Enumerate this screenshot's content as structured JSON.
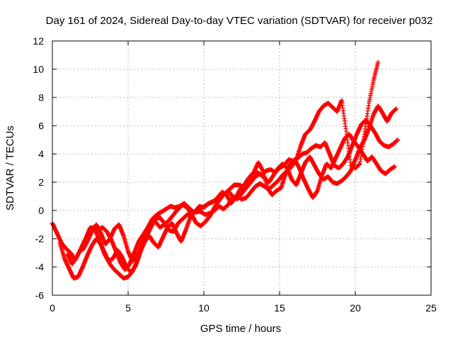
{
  "chart_data": {
    "type": "scatter",
    "title": "Day 161 of 2024, Sidereal Day-to-day VTEC variation (SDTVAR) for receiver p032",
    "xlabel": "GPS time / hours",
    "ylabel": "SDTVAR / TECUs",
    "xlim": [
      0,
      25
    ],
    "ylim": [
      -6,
      12
    ],
    "xticks": [
      "0",
      "5",
      "10",
      "15",
      "20",
      "25"
    ],
    "yticks": [
      "-6",
      "-4",
      "-2",
      "0",
      "2",
      "4",
      "6",
      "8",
      "10",
      "12"
    ],
    "grid": true,
    "marker": "plus",
    "color": "#ff0000",
    "series": [
      {
        "x": [
          0.0,
          0.3,
          0.6,
          0.9,
          1.2,
          1.5,
          1.8,
          2.1,
          2.4,
          2.7,
          3.0,
          3.3,
          3.6,
          3.9,
          4.2,
          4.5,
          4.8,
          5.1,
          5.4,
          5.7,
          6.0,
          6.3,
          6.6,
          6.9,
          7.2,
          7.5,
          7.8,
          8.1,
          8.4,
          8.7,
          9.0,
          9.3,
          9.6,
          9.9,
          10.2,
          10.5,
          10.8,
          11.1,
          11.4,
          11.7,
          12.0,
          12.3,
          12.6,
          12.9,
          13.2,
          13.5,
          13.8,
          14.1,
          14.4,
          14.7,
          15.0,
          15.3,
          15.6,
          15.9,
          16.2,
          16.5,
          16.8,
          17.1,
          17.4,
          17.7,
          18.0,
          18.3,
          18.6,
          18.9,
          19.2,
          19.5,
          19.8,
          20.1,
          20.4,
          20.7,
          21.0,
          21.3,
          21.6,
          21.9,
          22.2,
          22.5,
          22.8
        ],
        "y": [
          -0.9,
          -1.6,
          -2.3,
          -2.7,
          -3.0,
          -3.5,
          -2.9,
          -2.2,
          -1.6,
          -1.2,
          -1.4,
          -1.2,
          -1.5,
          -2.1,
          -2.9,
          -3.7,
          -4.2,
          -3.8,
          -3.0,
          -2.2,
          -1.7,
          -1.2,
          -0.6,
          -0.3,
          -0.1,
          0.1,
          0.3,
          0.2,
          0.3,
          0.5,
          0.2,
          -0.1,
          -0.1,
          0.2,
          0.4,
          0.6,
          0.7,
          1.0,
          1.2,
          1.5,
          1.8,
          1.8,
          1.7,
          2.2,
          2.6,
          2.7,
          2.5,
          2.8,
          2.9,
          2.7,
          3.0,
          3.2,
          3.6,
          3.5,
          3.7,
          4.0,
          4.1,
          4.4,
          4.6,
          4.5,
          4.8,
          4.0,
          3.2,
          3.0,
          3.3,
          3.8,
          4.6,
          5.4,
          6.1,
          6.4,
          6.0,
          5.5,
          4.9,
          4.6,
          4.5,
          4.7,
          5.0
        ]
      },
      {
        "x": [
          0.5,
          0.8,
          1.1,
          1.4,
          1.7,
          2.0,
          2.3,
          2.6,
          2.9,
          3.2,
          3.5,
          3.8,
          4.1,
          4.4,
          4.7,
          5.0,
          5.3,
          5.6,
          5.9,
          6.2,
          6.5,
          6.8,
          7.1,
          7.4,
          7.7,
          8.0,
          8.3,
          8.6,
          8.9,
          9.2,
          9.5,
          9.8,
          10.1,
          10.4,
          10.7,
          11.0,
          11.3,
          11.6,
          11.9,
          12.2,
          12.5,
          12.8,
          13.1,
          13.4,
          13.7,
          14.0,
          14.3,
          14.6,
          14.9,
          15.2,
          15.5,
          15.8,
          16.1,
          16.4,
          16.7,
          17.0,
          17.3,
          17.6,
          17.9,
          18.2,
          18.5,
          18.8,
          19.1,
          19.4,
          19.7,
          20.0,
          20.3,
          20.6,
          20.9,
          21.2,
          21.5
        ],
        "y": [
          -2.3,
          -3.4,
          -4.1,
          -4.8,
          -4.7,
          -4.0,
          -3.2,
          -2.5,
          -2.0,
          -2.4,
          -3.1,
          -3.8,
          -4.2,
          -4.5,
          -4.8,
          -4.7,
          -4.3,
          -3.6,
          -2.7,
          -1.9,
          -1.2,
          -0.6,
          -0.5,
          -0.9,
          -1.4,
          -1.5,
          -0.9,
          -0.6,
          -0.3,
          -0.2,
          0.0,
          -0.1,
          -0.3,
          -0.2,
          0.0,
          0.3,
          0.1,
          0.4,
          0.9,
          1.0,
          0.8,
          0.9,
          1.3,
          1.7,
          1.9,
          1.7,
          1.5,
          1.8,
          2.1,
          2.5,
          2.8,
          3.1,
          3.6,
          4.6,
          5.4,
          5.7,
          6.3,
          7.0,
          7.4,
          7.6,
          7.3,
          7.0,
          7.8,
          5.6,
          3.2,
          3.0,
          3.3,
          5.4,
          7.6,
          9.2,
          10.5
        ]
      },
      {
        "x": [
          2.0,
          2.3,
          2.6,
          2.9,
          3.2,
          3.5,
          3.8,
          4.1,
          4.4,
          4.7,
          5.0,
          5.3,
          5.6,
          5.9,
          6.2,
          6.5,
          6.8,
          7.1,
          7.4,
          7.7,
          8.0,
          8.3,
          8.6,
          8.9,
          9.2,
          9.5,
          9.8,
          10.1,
          10.4,
          10.7,
          11.0,
          11.3,
          11.6,
          11.9,
          12.2,
          12.5,
          12.8,
          13.1,
          13.4,
          13.7,
          14.0,
          14.3,
          14.6,
          14.9,
          15.2,
          15.5,
          15.8,
          16.1,
          16.4,
          16.7,
          17.0,
          17.3,
          17.6,
          17.9,
          18.2,
          18.5,
          18.8,
          19.1,
          19.4,
          19.7,
          20.0,
          20.3,
          20.6,
          20.9,
          21.2,
          21.5,
          21.8,
          22.1,
          22.4,
          22.7
        ],
        "y": [
          -2.8,
          -2.2,
          -1.5,
          -1.0,
          -1.6,
          -2.4,
          -2.0,
          -1.3,
          -1.0,
          -1.8,
          -2.9,
          -3.6,
          -3.2,
          -2.3,
          -1.6,
          -1.0,
          -0.8,
          -1.2,
          -1.0,
          -0.7,
          -0.3,
          0.1,
          0.4,
          0.2,
          -0.3,
          -0.9,
          -1.1,
          -0.8,
          -0.4,
          0.2,
          0.7,
          1.1,
          1.4,
          1.0,
          0.8,
          1.2,
          1.6,
          2.0,
          2.4,
          2.6,
          2.3,
          2.0,
          2.5,
          3.0,
          3.3,
          3.0,
          2.2,
          1.8,
          2.6,
          3.4,
          3.8,
          3.2,
          2.6,
          2.2,
          2.4,
          2.0,
          1.9,
          2.1,
          2.4,
          2.8,
          3.6,
          4.4,
          5.0,
          5.8,
          6.8,
          7.4,
          6.9,
          6.3,
          6.9,
          7.2
        ]
      },
      {
        "x": [
          1.0,
          1.3,
          1.6,
          1.9,
          2.2,
          2.5,
          2.8,
          3.1,
          3.4,
          3.7,
          4.0,
          4.3,
          4.6,
          4.9,
          5.2,
          5.5,
          5.8,
          6.1,
          6.4,
          6.7,
          7.0,
          7.3,
          7.6,
          7.9,
          8.2,
          8.5,
          8.8,
          9.1,
          9.4,
          9.7,
          10.0,
          10.3,
          10.6,
          10.9,
          11.2,
          11.5,
          11.8,
          12.1,
          12.4,
          12.7,
          13.0,
          13.3,
          13.6,
          13.9,
          14.2,
          14.5,
          14.8,
          15.1,
          15.4,
          15.7,
          16.0,
          16.3,
          16.6,
          16.9,
          17.2,
          17.5,
          17.8,
          18.1,
          18.4,
          18.7,
          19.0,
          19.3,
          19.6,
          19.9,
          20.2,
          20.5,
          20.8,
          21.1,
          21.4,
          21.7,
          22.0,
          22.3,
          22.6
        ],
        "y": [
          -3.1,
          -3.8,
          -3.3,
          -2.7,
          -2.0,
          -1.2,
          -1.3,
          -2.1,
          -3.0,
          -3.6,
          -3.4,
          -2.8,
          -3.3,
          -4.0,
          -4.4,
          -3.9,
          -2.9,
          -2.2,
          -1.8,
          -2.3,
          -2.6,
          -1.9,
          -1.2,
          -0.9,
          -1.6,
          -2.2,
          -1.4,
          -0.5,
          -0.1,
          0.3,
          0.2,
          0.5,
          0.6,
          0.9,
          1.3,
          1.1,
          0.5,
          0.9,
          1.5,
          1.8,
          2.1,
          2.7,
          3.4,
          2.8,
          1.6,
          1.1,
          1.4,
          1.6,
          2.6,
          3.3,
          3.6,
          3.0,
          2.2,
          1.5,
          0.9,
          1.4,
          2.5,
          3.3,
          3.0,
          3.7,
          4.4,
          5.1,
          5.4,
          4.9,
          4.5,
          4.0,
          3.5,
          3.8,
          3.3,
          2.8,
          2.6,
          2.9,
          3.1
        ]
      }
    ]
  }
}
